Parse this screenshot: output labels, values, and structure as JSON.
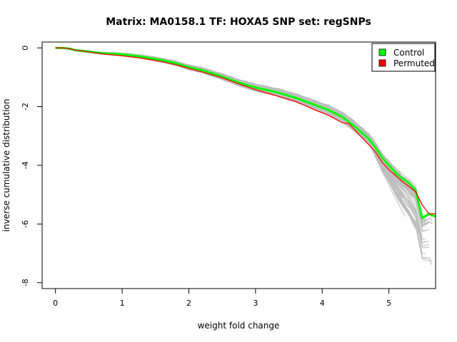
{
  "chart_data": {
    "type": "line",
    "title": "Matrix: MA0158.1 TF: HOXA5 SNP set: regSNPs",
    "xlabel": "weight fold change",
    "ylabel": "inverse cumulative distribution",
    "xlim": [
      -0.2,
      5.7
    ],
    "ylim": [
      -8.2,
      0.2
    ],
    "x_ticks": [
      0,
      1,
      2,
      3,
      4,
      5
    ],
    "y_ticks": [
      0,
      -2,
      -4,
      -6,
      -8
    ],
    "legend_position": "top-right",
    "grid": false,
    "series": [
      {
        "name": "Control",
        "color": "#00ff00",
        "x": [
          0,
          0.1,
          0.2,
          0.3,
          0.4,
          0.5,
          0.7,
          1.0,
          1.3,
          1.6,
          1.8,
          2.0,
          2.2,
          2.5,
          2.8,
          3.0,
          3.3,
          3.6,
          3.9,
          4.1,
          4.3,
          4.5,
          4.7,
          4.8,
          4.9,
          5.0,
          5.1,
          5.2,
          5.3,
          5.4,
          5.5,
          5.6,
          5.7
        ],
        "y": [
          0,
          0,
          -0.02,
          -0.08,
          -0.1,
          -0.13,
          -0.18,
          -0.22,
          -0.3,
          -0.42,
          -0.52,
          -0.66,
          -0.76,
          -0.98,
          -1.22,
          -1.35,
          -1.5,
          -1.7,
          -1.95,
          -2.12,
          -2.35,
          -2.7,
          -3.1,
          -3.4,
          -3.75,
          -4.0,
          -4.25,
          -4.45,
          -4.6,
          -4.85,
          -5.8,
          -5.65,
          -5.75
        ]
      },
      {
        "name": "Permuted",
        "color": "#ff0000",
        "x": [
          0,
          0.1,
          0.2,
          0.3,
          0.4,
          0.5,
          0.7,
          1.0,
          1.3,
          1.6,
          1.8,
          2.0,
          2.2,
          2.5,
          2.8,
          3.0,
          3.3,
          3.6,
          3.9,
          4.1,
          4.3,
          4.4,
          4.5,
          4.7,
          4.8,
          4.9,
          5.0,
          5.1,
          5.2,
          5.3,
          5.4,
          5.5,
          5.6,
          5.7
        ],
        "y": [
          0,
          0,
          -0.02,
          -0.08,
          -0.1,
          -0.14,
          -0.2,
          -0.27,
          -0.35,
          -0.47,
          -0.57,
          -0.7,
          -0.82,
          -1.02,
          -1.27,
          -1.42,
          -1.62,
          -1.82,
          -2.12,
          -2.3,
          -2.55,
          -2.58,
          -2.82,
          -3.3,
          -3.55,
          -3.9,
          -4.15,
          -4.35,
          -4.55,
          -4.72,
          -4.9,
          -5.35,
          -5.65,
          -5.65
        ]
      }
    ],
    "background_band": {
      "color": "#bebebe",
      "description_series_count": 100
    }
  }
}
